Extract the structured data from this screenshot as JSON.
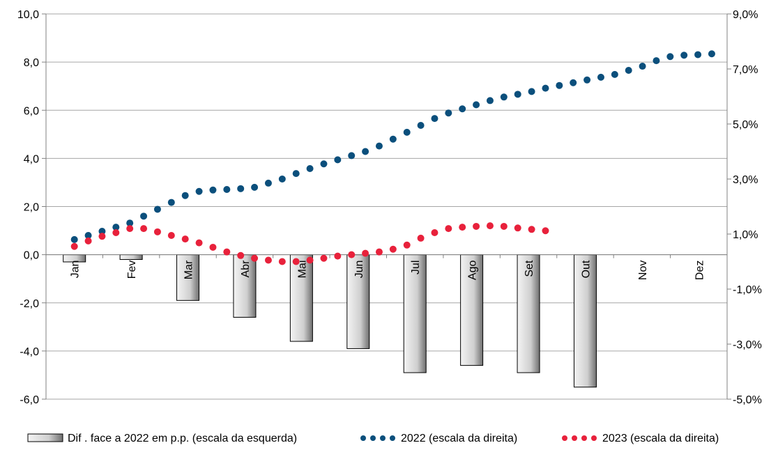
{
  "chart_data": {
    "type": "bar+scatter",
    "colors": {
      "bar_fill": "#d0d0d0",
      "bar_stroke": "#000000",
      "series_2022": "#0b4f7c",
      "series_2023": "#e8213b",
      "grid": "#a6a6a6"
    },
    "grid": true,
    "legend_position": "bottom",
    "months": [
      "Jan",
      "Fev",
      "Mar",
      "Abr",
      "Mai",
      "Jun",
      "Jul",
      "Ago",
      "Set",
      "Out",
      "Nov",
      "Dez"
    ],
    "left_axis": {
      "min": -6,
      "max": 10,
      "ticks": [
        "10,0",
        "8,0",
        "6,0",
        "4,0",
        "2,0",
        "0,0",
        "-2,0",
        "-4,0",
        "-6,0"
      ],
      "tick_values": [
        10,
        8,
        6,
        4,
        2,
        0,
        -2,
        -4,
        -6
      ]
    },
    "right_axis": {
      "min": -5,
      "max": 9,
      "ticks": [
        "9,0%",
        "7,0%",
        "5,0%",
        "3,0%",
        "1,0%",
        "-1,0%",
        "-3,0%",
        "-5,0%"
      ],
      "tick_values": [
        9,
        7,
        5,
        3,
        1,
        -1,
        -3,
        -5
      ]
    },
    "bars": {
      "name": "Dif . face a 2022 em p.p. (escala da esquerda)",
      "axis": "left",
      "values": [
        -0.3,
        -0.2,
        -1.9,
        -2.6,
        -3.6,
        -3.9,
        -4.9,
        -4.6,
        -4.9,
        -5.5
      ]
    },
    "series": [
      {
        "name": "2022 (escala da direita)",
        "axis": "right",
        "values": [
          0.8,
          0.95,
          1.1,
          1.25,
          1.4,
          1.65,
          1.9,
          2.15,
          2.4,
          2.55,
          2.6,
          2.62,
          2.65,
          2.7,
          2.85,
          3.0,
          3.2,
          3.38,
          3.55,
          3.7,
          3.85,
          4.0,
          4.2,
          4.45,
          4.7,
          4.95,
          5.2,
          5.4,
          5.55,
          5.7,
          5.85,
          5.98,
          6.08,
          6.18,
          6.3,
          6.4,
          6.5,
          6.6,
          6.7,
          6.8,
          6.95,
          7.1,
          7.3,
          7.45,
          7.5,
          7.52,
          7.55
        ]
      },
      {
        "name": "2023 (escala da direita)",
        "axis": "right",
        "values": [
          0.55,
          0.75,
          0.92,
          1.05,
          1.2,
          1.2,
          1.08,
          0.95,
          0.82,
          0.68,
          0.52,
          0.35,
          0.22,
          0.12,
          0.05,
          0.0,
          0.0,
          0.05,
          0.12,
          0.2,
          0.25,
          0.3,
          0.35,
          0.45,
          0.6,
          0.85,
          1.05,
          1.2,
          1.25,
          1.28,
          1.3,
          1.28,
          1.22,
          1.17,
          1.12
        ]
      }
    ]
  }
}
